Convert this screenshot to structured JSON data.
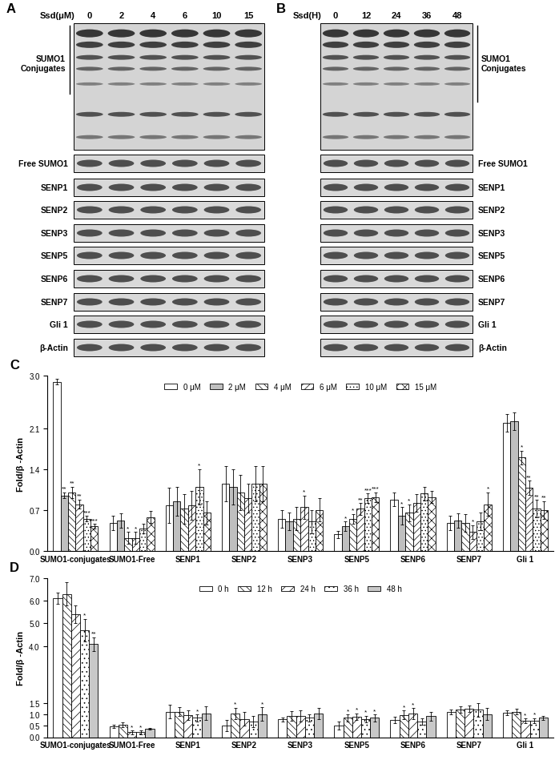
{
  "blots": [
    {
      "panel": "A",
      "header": "Ssd(μM)",
      "lanes": [
        "0",
        "2",
        "4",
        "6",
        "10",
        "15"
      ],
      "rows": [
        "SUMO1\nConjugates",
        "Free SUMO1",
        "SENP1",
        "SENP2",
        "SENP3",
        "SENP5",
        "SENP6",
        "SENP7",
        "Gli 1",
        "β-Actin"
      ]
    },
    {
      "panel": "B",
      "header": "Ssd(H)",
      "lanes": [
        "0",
        "12",
        "24",
        "36",
        "48"
      ],
      "rows": [
        "SUMO1\nConjugates",
        "Free SUMO1",
        "SENP1",
        "SENP2",
        "SENP3",
        "SENP5",
        "SENP6",
        "SENP7",
        "Gli 1",
        "β-Actin"
      ]
    }
  ],
  "chart_data": [
    {
      "type": "bar",
      "title": "C",
      "ylabel": "Fold/β -Actin",
      "categories": [
        "SUMO1-conjugates",
        "SUMO1-Free",
        "SENP1",
        "SENP2",
        "SENP3",
        "SENP5",
        "SENP6",
        "SENP7",
        "Gli 1"
      ],
      "series": [
        {
          "name": "0 μM",
          "color": "#ffffff",
          "values": [
            2.9,
            0.48,
            0.78,
            1.15,
            0.55,
            0.28,
            0.88,
            0.48,
            2.2
          ],
          "errors": [
            0.05,
            0.12,
            0.3,
            0.3,
            0.15,
            0.06,
            0.12,
            0.12,
            0.15
          ],
          "significance": [
            null,
            null,
            null,
            null,
            null,
            null,
            null,
            null,
            null
          ]
        },
        {
          "name": "2 μM",
          "color": "#bfbfbf",
          "values": [
            0.95,
            0.52,
            0.85,
            1.1,
            0.5,
            0.42,
            0.6,
            0.52,
            2.22
          ],
          "errors": [
            0.05,
            0.12,
            0.25,
            0.3,
            0.15,
            0.08,
            0.15,
            0.12,
            0.15
          ],
          "significance": [
            "**",
            null,
            null,
            null,
            null,
            "*",
            "*",
            null,
            null
          ]
        },
        {
          "name": "4 μM",
          "color": "#ffffff",
          "values": [
            1.0,
            0.22,
            0.72,
            1.0,
            0.55,
            0.55,
            0.65,
            0.48,
            1.6
          ],
          "errors": [
            0.1,
            0.1,
            0.25,
            0.3,
            0.2,
            0.08,
            0.15,
            0.15,
            0.12
          ],
          "significance": [
            "**",
            "*",
            null,
            null,
            null,
            "*",
            "*",
            null,
            "*"
          ]
        },
        {
          "name": "6 μM",
          "color": "#ffffff",
          "values": [
            0.8,
            0.22,
            0.78,
            0.9,
            0.75,
            0.72,
            0.82,
            0.32,
            1.08
          ],
          "errors": [
            0.08,
            0.1,
            0.25,
            0.25,
            0.2,
            0.1,
            0.15,
            0.12,
            0.12
          ],
          "significance": [
            "**",
            "*",
            null,
            null,
            "*",
            "**",
            null,
            "*",
            "**"
          ]
        },
        {
          "name": "10 μM",
          "color": "#ffffff",
          "values": [
            0.55,
            0.38,
            1.1,
            1.15,
            0.5,
            0.9,
            0.98,
            0.5,
            0.72
          ],
          "errors": [
            0.05,
            0.08,
            0.3,
            0.3,
            0.2,
            0.08,
            0.12,
            0.15,
            0.15
          ],
          "significance": [
            "***",
            null,
            "*",
            null,
            null,
            "***",
            null,
            null,
            "**"
          ]
        },
        {
          "name": "15 μM",
          "color": "#ffffff",
          "values": [
            0.42,
            0.58,
            0.65,
            1.15,
            0.7,
            0.92,
            0.92,
            0.8,
            0.7
          ],
          "errors": [
            0.04,
            0.1,
            0.2,
            0.3,
            0.2,
            0.08,
            0.1,
            0.2,
            0.15
          ],
          "significance": [
            "***",
            null,
            null,
            null,
            null,
            "***",
            null,
            "*",
            "**"
          ]
        }
      ],
      "ylim": [
        0,
        3.0
      ],
      "yticks": [
        {
          "value": 0,
          "label": "0.0"
        },
        0.7,
        1.4,
        2.1,
        {
          "value": 3,
          "label": "3.0"
        }
      ],
      "legend": "upper center",
      "grid": false
    },
    {
      "type": "bar",
      "title": "D",
      "ylabel": "Fold/β -Actin",
      "categories": [
        "SUMO1-conjugates",
        "SUMO1-Free",
        "SENP1",
        "SENP2",
        "SENP3",
        "SENP5",
        "SENP6",
        "SENP7",
        "Gli 1"
      ],
      "series": [
        {
          "name": "0 h",
          "color": "#ffffff",
          "values": [
            6.1,
            0.48,
            1.12,
            0.5,
            0.78,
            0.52,
            0.75,
            1.12,
            1.08
          ],
          "errors": [
            0.25,
            0.07,
            0.3,
            0.25,
            0.1,
            0.18,
            0.15,
            0.1,
            0.1
          ],
          "significance": [
            null,
            null,
            null,
            null,
            null,
            null,
            null,
            null,
            null
          ]
        },
        {
          "name": "12 h",
          "color": "#ffffff",
          "values": [
            6.3,
            0.55,
            1.12,
            1.05,
            0.93,
            0.85,
            0.98,
            1.22,
            1.12
          ],
          "errors": [
            0.5,
            0.1,
            0.2,
            0.25,
            0.2,
            0.15,
            0.2,
            0.15,
            0.12
          ],
          "significance": [
            null,
            null,
            null,
            "*",
            null,
            "*",
            "*",
            null,
            null
          ]
        },
        {
          "name": "24 h",
          "color": "#ffffff",
          "values": [
            5.4,
            0.22,
            0.97,
            0.8,
            0.92,
            0.9,
            1.03,
            1.25,
            0.72
          ],
          "errors": [
            0.4,
            0.08,
            0.2,
            0.3,
            0.25,
            0.15,
            0.25,
            0.15,
            0.1
          ],
          "significance": [
            null,
            "*",
            null,
            null,
            null,
            "*",
            "*",
            null,
            "*"
          ]
        },
        {
          "name": "36 h",
          "color": "#ffffff",
          "values": [
            4.7,
            0.22,
            0.85,
            0.7,
            0.85,
            0.8,
            0.68,
            1.2,
            0.72
          ],
          "errors": [
            0.5,
            0.08,
            0.15,
            0.25,
            0.15,
            0.15,
            0.15,
            0.3,
            0.12
          ],
          "significance": [
            "*",
            "*",
            "*",
            null,
            null,
            "*",
            null,
            null,
            "*"
          ]
        },
        {
          "name": "48 h",
          "color": "#c8c8c8",
          "values": [
            4.1,
            0.37,
            1.05,
            1.02,
            1.05,
            0.85,
            0.92,
            1.02,
            0.85
          ],
          "errors": [
            0.3,
            0.04,
            0.3,
            0.3,
            0.25,
            0.15,
            0.2,
            0.25,
            0.08
          ],
          "significance": [
            "**",
            null,
            null,
            "*",
            null,
            "*",
            null,
            null,
            null
          ]
        }
      ],
      "ylim": [
        0,
        7.0
      ],
      "yticks": [
        {
          "value": 0,
          "label": "0.0"
        },
        0.5,
        {
          "value": 1,
          "label": "1.0"
        },
        1.5,
        {
          "value": 4,
          "label": "4.0"
        },
        {
          "value": 5,
          "label": "5.0"
        },
        {
          "value": 6,
          "label": "6.0"
        },
        {
          "value": 7,
          "label": "7.0"
        }
      ],
      "legend": "upper center",
      "grid": false
    }
  ]
}
